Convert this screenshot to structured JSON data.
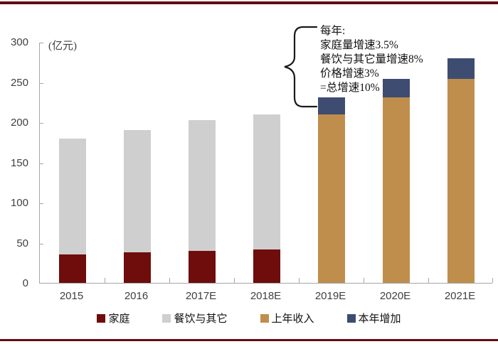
{
  "page": {
    "background": "#ffffff",
    "rule_color": "#650b10"
  },
  "chart_data": {
    "type": "bar",
    "stacked": true,
    "title": "",
    "unit_label": "(亿元)",
    "categories": [
      "2015",
      "2016",
      "2017E",
      "2018E",
      "2019E",
      "2020E",
      "2021E"
    ],
    "series": [
      {
        "name": "家庭",
        "color": "#6f0c0c",
        "values": [
          35,
          38,
          40,
          42,
          null,
          null,
          null
        ]
      },
      {
        "name": "餐饮与其它",
        "color": "#cfcfcf",
        "values": [
          145,
          152,
          163,
          168,
          null,
          null,
          null
        ]
      },
      {
        "name": "上年收入",
        "color": "#c08e4c",
        "values": [
          null,
          null,
          null,
          null,
          210,
          231,
          254
        ]
      },
      {
        "name": "本年增加",
        "color": "#3d4c70",
        "values": [
          null,
          null,
          null,
          null,
          21,
          23,
          26
        ]
      }
    ],
    "totals": [
      180,
      190,
      203,
      210,
      231,
      254,
      280
    ],
    "ylim": [
      0,
      300
    ],
    "yticks": [
      0,
      50,
      100,
      150,
      200,
      250,
      300
    ],
    "grid": false,
    "legend_position": "bottom",
    "annotation": {
      "lines": [
        "每年:",
        "家庭量增速3.5%",
        "餐饮与其它量增速8%",
        "价格增速3%",
        "=总增速10%"
      ],
      "points_to": "2019E"
    }
  }
}
